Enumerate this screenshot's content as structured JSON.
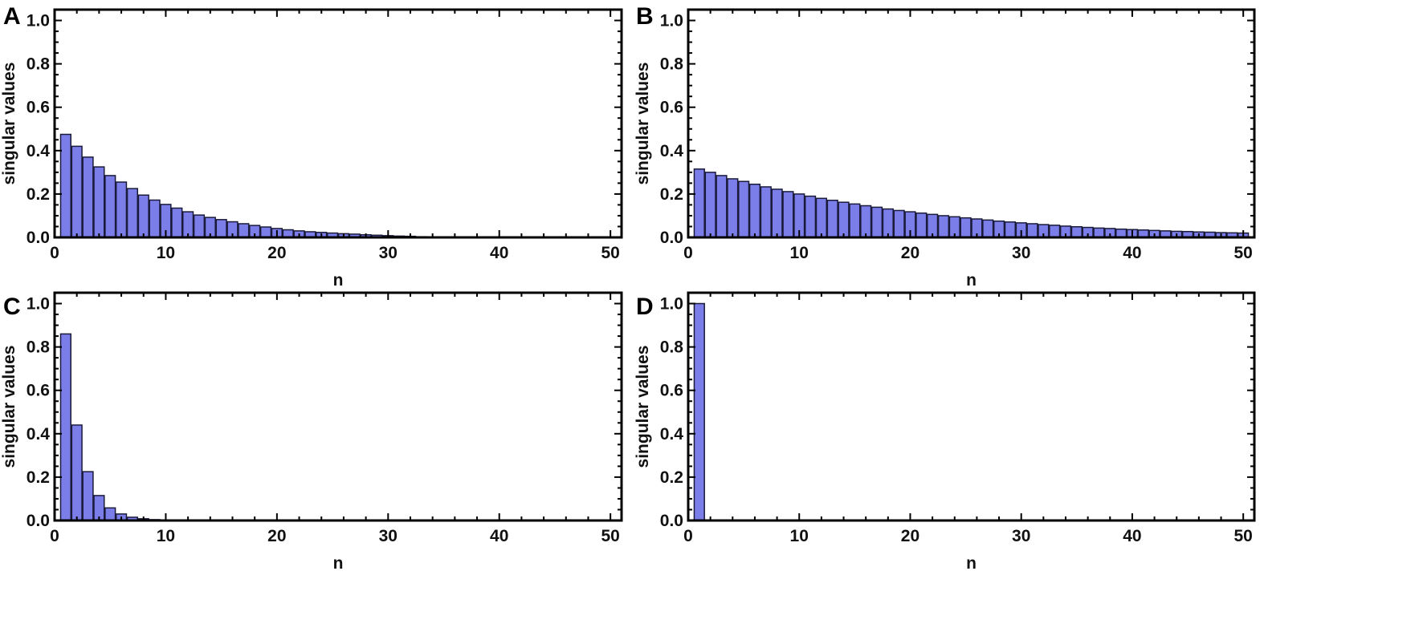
{
  "colors": {
    "bar_fill": "#7b7ee8",
    "bar_stroke": "#1a1a3a",
    "frame": "#000000"
  },
  "chart_data": [
    {
      "panel": "A",
      "type": "bar",
      "xlabel": "n",
      "ylabel": "singular values",
      "xlim": [
        0,
        51
      ],
      "ylim": [
        0,
        1.05
      ],
      "xticks": [
        "0",
        "10",
        "20",
        "30",
        "40",
        "50"
      ],
      "yticks": [
        "0.0",
        "0.2",
        "0.4",
        "0.6",
        "0.8",
        "1.0"
      ],
      "grid": false,
      "x": [
        1,
        2,
        3,
        4,
        5,
        6,
        7,
        8,
        9,
        10,
        11,
        12,
        13,
        14,
        15,
        16,
        17,
        18,
        19,
        20,
        21,
        22,
        23,
        24,
        25,
        26,
        27,
        28,
        29,
        30,
        31,
        32,
        33,
        34,
        35,
        36,
        37,
        38,
        39,
        40,
        41,
        42,
        43,
        44,
        45,
        46,
        47,
        48,
        49,
        50
      ],
      "values": [
        0.475,
        0.42,
        0.37,
        0.325,
        0.285,
        0.255,
        0.225,
        0.195,
        0.172,
        0.152,
        0.135,
        0.118,
        0.103,
        0.092,
        0.082,
        0.072,
        0.063,
        0.055,
        0.048,
        0.041,
        0.035,
        0.03,
        0.026,
        0.023,
        0.02,
        0.017,
        0.015,
        0.012,
        0.01,
        0.008,
        0.006,
        0.005,
        0.003,
        0.002,
        0.002,
        0.001,
        0.001,
        0.001,
        0,
        0,
        0,
        0,
        0,
        0,
        0,
        0,
        0,
        0,
        0,
        0
      ]
    },
    {
      "panel": "B",
      "type": "bar",
      "xlabel": "n",
      "ylabel": "singular values",
      "xlim": [
        0,
        51
      ],
      "ylim": [
        0,
        1.05
      ],
      "xticks": [
        "0",
        "10",
        "20",
        "30",
        "40",
        "50"
      ],
      "yticks": [
        "0.0",
        "0.2",
        "0.4",
        "0.6",
        "0.8",
        "1.0"
      ],
      "grid": false,
      "x": [
        1,
        2,
        3,
        4,
        5,
        6,
        7,
        8,
        9,
        10,
        11,
        12,
        13,
        14,
        15,
        16,
        17,
        18,
        19,
        20,
        21,
        22,
        23,
        24,
        25,
        26,
        27,
        28,
        29,
        30,
        31,
        32,
        33,
        34,
        35,
        36,
        37,
        38,
        39,
        40,
        41,
        42,
        43,
        44,
        45,
        46,
        47,
        48,
        49,
        50
      ],
      "values": [
        0.315,
        0.3,
        0.285,
        0.27,
        0.258,
        0.245,
        0.233,
        0.222,
        0.211,
        0.2,
        0.19,
        0.18,
        0.171,
        0.162,
        0.154,
        0.146,
        0.139,
        0.131,
        0.124,
        0.118,
        0.112,
        0.106,
        0.1,
        0.095,
        0.09,
        0.085,
        0.08,
        0.075,
        0.071,
        0.067,
        0.063,
        0.059,
        0.056,
        0.052,
        0.049,
        0.046,
        0.043,
        0.041,
        0.038,
        0.036,
        0.034,
        0.032,
        0.03,
        0.028,
        0.027,
        0.025,
        0.024,
        0.022,
        0.021,
        0.02
      ]
    },
    {
      "panel": "C",
      "type": "bar",
      "xlabel": "n",
      "ylabel": "singular values",
      "xlim": [
        0,
        51
      ],
      "ylim": [
        0,
        1.05
      ],
      "xticks": [
        "0",
        "10",
        "20",
        "30",
        "40",
        "50"
      ],
      "yticks": [
        "0.0",
        "0.2",
        "0.4",
        "0.6",
        "0.8",
        "1.0"
      ],
      "grid": false,
      "x": [
        1,
        2,
        3,
        4,
        5,
        6,
        7,
        8,
        9,
        10
      ],
      "values": [
        0.86,
        0.44,
        0.225,
        0.115,
        0.058,
        0.03,
        0.015,
        0.008,
        0.004,
        0.002
      ]
    },
    {
      "panel": "D",
      "type": "bar",
      "xlabel": "n",
      "ylabel": "singular values",
      "xlim": [
        0,
        51
      ],
      "ylim": [
        0,
        1.05
      ],
      "xticks": [
        "0",
        "10",
        "20",
        "30",
        "40",
        "50"
      ],
      "yticks": [
        "0.0",
        "0.2",
        "0.4",
        "0.6",
        "0.8",
        "1.0"
      ],
      "grid": false,
      "x": [
        1
      ],
      "values": [
        1.0
      ]
    }
  ]
}
